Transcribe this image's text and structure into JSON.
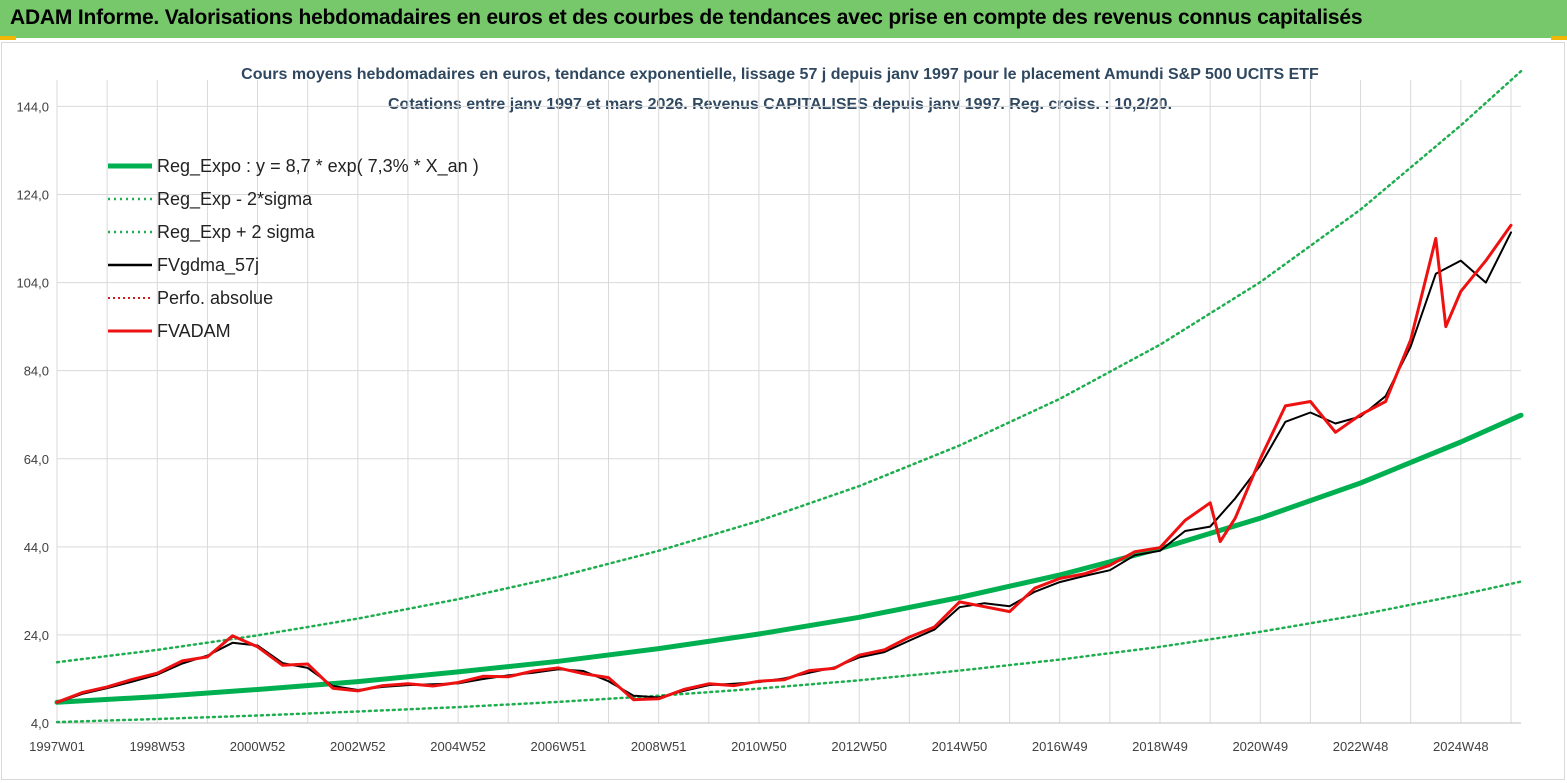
{
  "header": {
    "title": "ADAM Informe. Valorisations hebdomadaires en euros et des courbes de tendances avec prise en compte des revenus connus capitalisés"
  },
  "colors": {
    "banner": "#77c86b",
    "trend": "#00b050",
    "band": "#1fae4f",
    "fvgdma": "#000000",
    "perfo": "#c00000",
    "fvadam": "#ee1111"
  },
  "chart_data": {
    "type": "line",
    "title": "Cours moyens hebdomadaires en euros, tendance exponentielle, lissage 57 j depuis janv 1997  pour le placement Amundi S&P 500 UCITS ETF",
    "subtitle": "Cotations entre janv 1997 et mars 2026. Revenus CAPITALISES depuis janv 1997. Reg. croiss. : 10,2/20.",
    "xlabel": "",
    "ylabel": "",
    "x_range": [
      1997.0,
      2026.2
    ],
    "ylim": [
      4,
      150
    ],
    "y_ticks": [
      "4,0",
      "24,0",
      "44,0",
      "64,0",
      "84,0",
      "104,0",
      "124,0",
      "144,0"
    ],
    "x_tick_labels": [
      "1997W01",
      "1998W53",
      "2000W52",
      "2002W52",
      "2004W52",
      "2006W51",
      "2008W51",
      "2010W50",
      "2012W50",
      "2014W50",
      "2016W49",
      "2018W49",
      "2020W49",
      "2022W48",
      "2024W48"
    ],
    "grid": true,
    "legend_position": "top-left",
    "legend": [
      "Reg_Expo : y = 8,7 * exp( 7,3% *  X_an )",
      "Reg_Exp - 2*sigma",
      "Reg_Exp + 2 sigma",
      "FVgdma_57j",
      "Perfo. absolue",
      "FVADAM"
    ],
    "series": [
      {
        "name": "Reg_Expo : y = 8,7 * exp( 7,3% *  X_an )",
        "style": "solid-thick",
        "x": [
          1997.0,
          1999.0,
          2001.0,
          2003.0,
          2005.0,
          2007.0,
          2009.0,
          2011.0,
          2013.0,
          2015.0,
          2017.0,
          2019.0,
          2021.0,
          2023.0,
          2025.0,
          2026.2
        ],
        "values": [
          8.7,
          10.0,
          11.6,
          13.4,
          15.6,
          18.0,
          20.9,
          24.2,
          28.0,
          32.5,
          37.6,
          43.6,
          50.5,
          58.5,
          67.8,
          73.9
        ]
      },
      {
        "name": "Reg_Exp - 2*sigma",
        "style": "dotted",
        "x": [
          1997.0,
          1999.0,
          2001.0,
          2003.0,
          2005.0,
          2007.0,
          2009.0,
          2011.0,
          2013.0,
          2015.0,
          2017.0,
          2019.0,
          2021.0,
          2023.0,
          2025.0,
          2026.2
        ],
        "values": [
          4.2,
          4.9,
          5.7,
          6.6,
          7.6,
          8.8,
          10.2,
          11.8,
          13.7,
          15.9,
          18.4,
          21.3,
          24.7,
          28.6,
          33.1,
          36.1
        ]
      },
      {
        "name": "Reg_Exp + 2 sigma",
        "style": "dotted",
        "x": [
          1997.0,
          1999.0,
          2001.0,
          2003.0,
          2005.0,
          2007.0,
          2009.0,
          2011.0,
          2013.0,
          2015.0,
          2017.0,
          2019.0,
          2021.0,
          2023.0,
          2025.0,
          2026.2
        ],
        "values": [
          17.8,
          20.6,
          23.9,
          27.7,
          32.1,
          37.2,
          43.1,
          49.9,
          57.8,
          67.0,
          77.6,
          89.9,
          104.1,
          120.6,
          139.7,
          152.0
        ]
      },
      {
        "name": "FVgdma_57j",
        "style": "solid",
        "x": [
          1997.0,
          1997.5,
          1998.0,
          1998.5,
          1999.0,
          1999.5,
          2000.0,
          2000.5,
          2001.0,
          2001.5,
          2002.0,
          2002.5,
          2003.0,
          2003.5,
          2004.0,
          2004.5,
          2005.0,
          2005.5,
          2006.0,
          2006.5,
          2007.0,
          2007.5,
          2008.0,
          2008.5,
          2009.0,
          2009.5,
          2010.0,
          2010.5,
          2011.0,
          2011.5,
          2012.0,
          2012.5,
          2013.0,
          2013.5,
          2014.0,
          2014.5,
          2015.0,
          2015.5,
          2016.0,
          2016.5,
          2017.0,
          2017.5,
          2018.0,
          2018.5,
          2019.0,
          2019.5,
          2020.0,
          2020.5,
          2021.0,
          2021.5,
          2022.0,
          2022.5,
          2023.0,
          2023.5,
          2024.0,
          2024.5,
          2025.0,
          2025.5,
          2026.0
        ],
        "values": [
          8.6,
          10.6,
          11.9,
          13.4,
          15.0,
          17.5,
          19.3,
          22.2,
          21.6,
          17.6,
          16.5,
          12.4,
          11.5,
          12.2,
          12.6,
          12.8,
          13.0,
          14.0,
          14.8,
          15.4,
          16.2,
          15.8,
          13.5,
          10.2,
          9.8,
          11.3,
          12.6,
          12.9,
          13.3,
          14.1,
          15.4,
          16.6,
          18.9,
          20.1,
          22.7,
          25.2,
          30.3,
          31.2,
          30.5,
          33.8,
          36.0,
          37.4,
          38.7,
          42.1,
          43.1,
          47.6,
          48.6,
          55.0,
          62.5,
          72.4,
          74.5,
          72.0,
          73.6,
          78.2,
          89.5,
          106.0,
          109.0,
          104.0,
          115.4
        ]
      },
      {
        "name": "FVADAM",
        "style": "solid-thick",
        "x": [
          1997.0,
          1997.5,
          1998.0,
          1998.5,
          1999.0,
          1999.5,
          2000.0,
          2000.5,
          2001.0,
          2001.5,
          2002.0,
          2002.5,
          2003.0,
          2003.5,
          2004.0,
          2004.5,
          2005.0,
          2005.5,
          2006.0,
          2006.5,
          2007.0,
          2007.5,
          2008.0,
          2008.5,
          2009.0,
          2009.5,
          2010.0,
          2010.5,
          2011.0,
          2011.5,
          2012.0,
          2012.5,
          2013.0,
          2013.5,
          2014.0,
          2014.5,
          2015.0,
          2015.5,
          2016.0,
          2016.5,
          2017.0,
          2017.5,
          2018.0,
          2018.5,
          2019.0,
          2019.5,
          2020.0,
          2020.2,
          2020.5,
          2021.0,
          2021.5,
          2022.0,
          2022.5,
          2023.0,
          2023.5,
          2024.0,
          2024.5,
          2024.7,
          2025.0,
          2025.5,
          2026.0
        ],
        "values": [
          8.7,
          10.9,
          12.2,
          13.9,
          15.3,
          18.1,
          19.0,
          23.8,
          21.3,
          17.1,
          17.4,
          11.9,
          11.3,
          12.5,
          12.9,
          12.4,
          13.2,
          14.6,
          14.5,
          15.8,
          16.5,
          15.2,
          14.3,
          9.3,
          9.5,
          11.6,
          12.9,
          12.5,
          13.5,
          13.8,
          15.9,
          16.4,
          19.4,
          20.6,
          23.5,
          25.8,
          31.5,
          30.4,
          29.3,
          34.6,
          36.8,
          37.9,
          39.8,
          42.9,
          43.8,
          50.0,
          54.0,
          45.2,
          50.5,
          64.0,
          76.0,
          77.0,
          70.0,
          74.0,
          77.0,
          91.0,
          114.0,
          94.0,
          102.0,
          109.0,
          117.0
        ]
      }
    ]
  }
}
